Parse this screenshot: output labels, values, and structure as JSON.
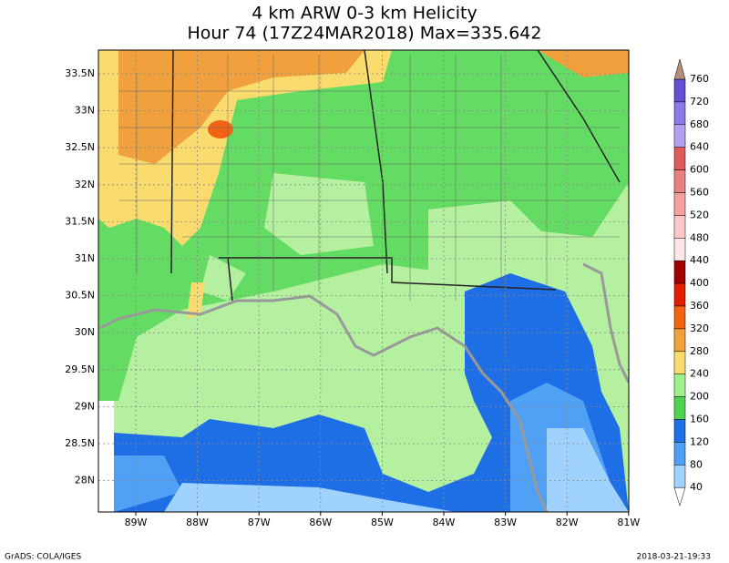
{
  "title": {
    "line1": "4 km ARW 0-3 km Helicity",
    "line2": "Hour 74 (17Z24MAR2018) Max=335.642"
  },
  "map": {
    "lon_labels": [
      "89W",
      "88W",
      "87W",
      "86W",
      "85W",
      "84W",
      "83W",
      "82W",
      "81W"
    ],
    "lat_labels": [
      "33.5N",
      "33N",
      "32.5N",
      "32N",
      "31.5N",
      "31N",
      "30.5N",
      "30N",
      "29.5N",
      "29N",
      "28.5N",
      "28N"
    ]
  },
  "colorbar": {
    "labels": [
      "760",
      "720",
      "680",
      "640",
      "600",
      "560",
      "520",
      "480",
      "440",
      "400",
      "360",
      "320",
      "280",
      "240",
      "200",
      "160",
      "120",
      "80",
      "40"
    ],
    "colors": [
      "#6450d2",
      "#8c78e6",
      "#b4a0f0",
      "#e15a5a",
      "#e68282",
      "#f5a0a0",
      "#ffc8c8",
      "#ffe6e6",
      "#a00000",
      "#e11e00",
      "#f06414",
      "#f0a03c",
      "#fadc6e",
      "#a0f08c",
      "#50d250",
      "#1e6ee6",
      "#50a0f5",
      "#a0d2ff"
    ],
    "over_color": "#b48c78",
    "under_color": "#ffffff"
  },
  "footer": {
    "left": "GrADS: COLA/IGES",
    "right": "2018-03-21-19:33"
  }
}
